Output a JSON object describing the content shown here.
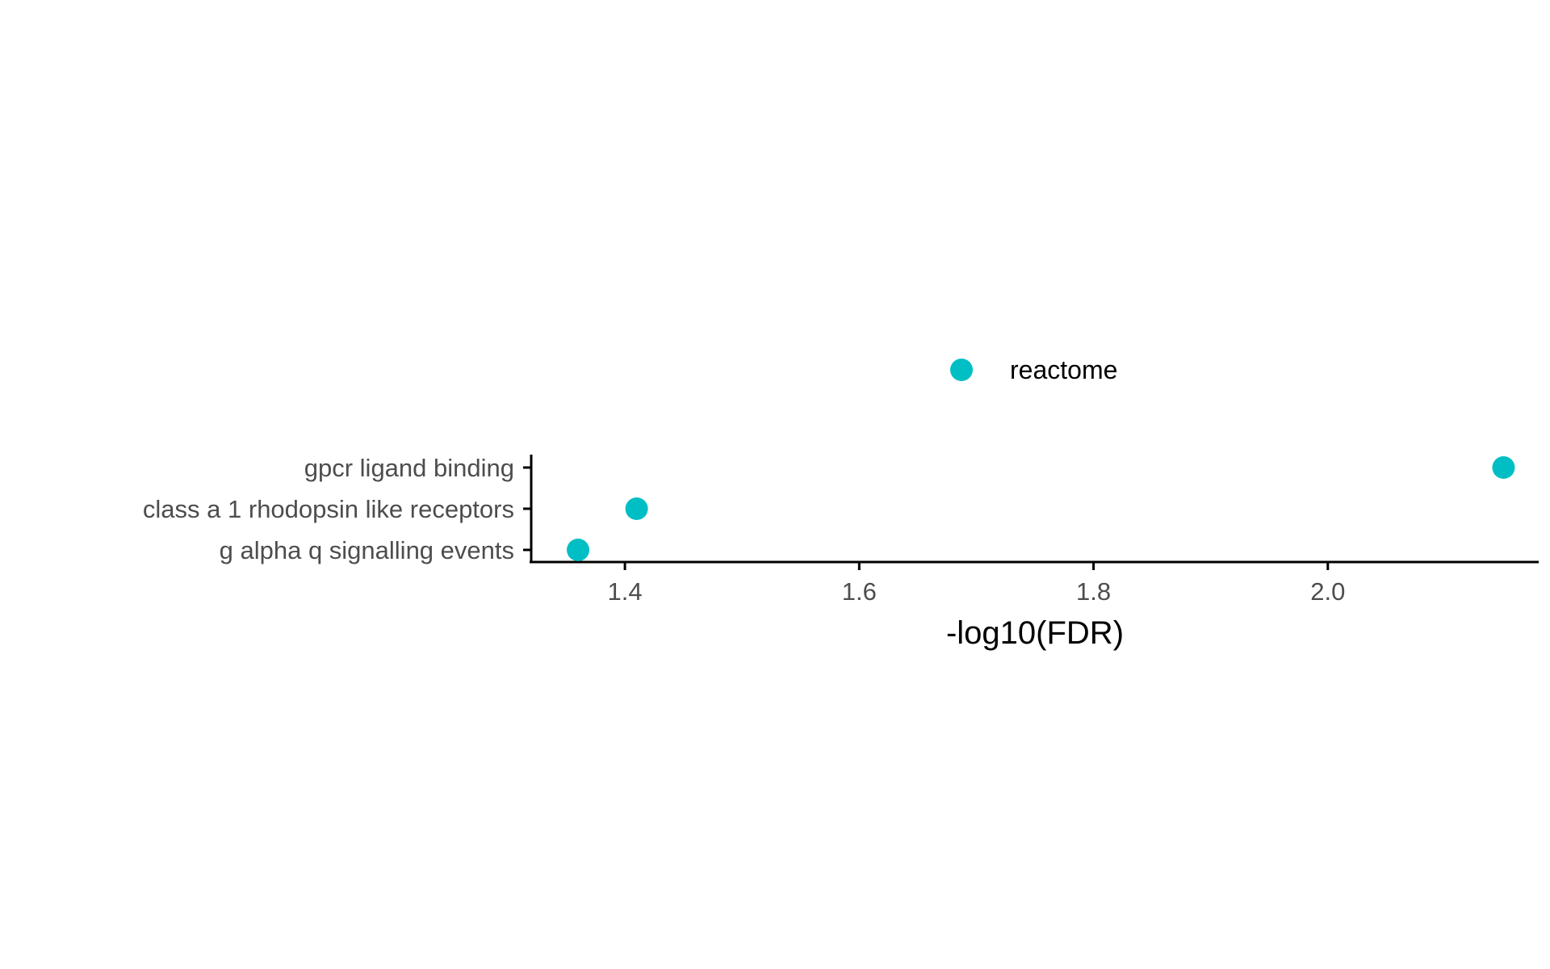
{
  "chart_data": {
    "type": "scatter",
    "title": "",
    "xlabel": "-log10(FDR)",
    "ylabel": "",
    "xlim": [
      1.32,
      2.18
    ],
    "x_ticks": [
      1.4,
      1.6,
      1.8,
      2.0
    ],
    "x_tick_labels": [
      "1.4",
      "1.6",
      "1.8",
      "2.0"
    ],
    "categories": [
      "g alpha q signalling events",
      "class a 1 rhodopsin like receptors",
      "gpcr ligand binding"
    ],
    "series": [
      {
        "name": "reactome",
        "color": "#00BFC4",
        "points": [
          {
            "category": "g alpha q signalling events",
            "x": 1.36
          },
          {
            "category": "class a 1 rhodopsin like receptors",
            "x": 1.41
          },
          {
            "category": "gpcr ligand binding",
            "x": 2.15
          }
        ]
      }
    ],
    "legend": {
      "position": "top",
      "entries": [
        "reactome"
      ]
    },
    "grid": false
  }
}
